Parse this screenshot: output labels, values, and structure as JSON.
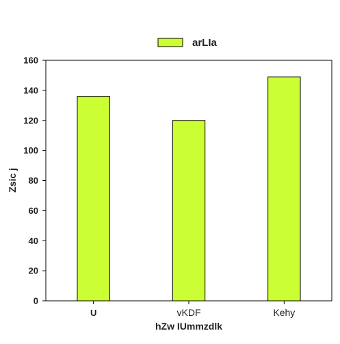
{
  "chart_data": {
    "type": "bar",
    "categories": [
      "U",
      "vKDF",
      "Kehy"
    ],
    "category_label_weights": [
      "bold",
      "normal",
      "normal"
    ],
    "series": [
      {
        "name": "arLIa",
        "values": [
          136,
          120,
          149
        ],
        "color": "#ccff33"
      }
    ],
    "title": "",
    "xlabel": "hZw IUmmzdlk",
    "ylabel": "Zsic j",
    "ylim": [
      0,
      160
    ],
    "yticks": [
      0,
      20,
      40,
      60,
      80,
      100,
      120,
      140,
      160
    ],
    "grid": false,
    "legend_position": "top-center",
    "bar_edge_color": "#000000"
  }
}
